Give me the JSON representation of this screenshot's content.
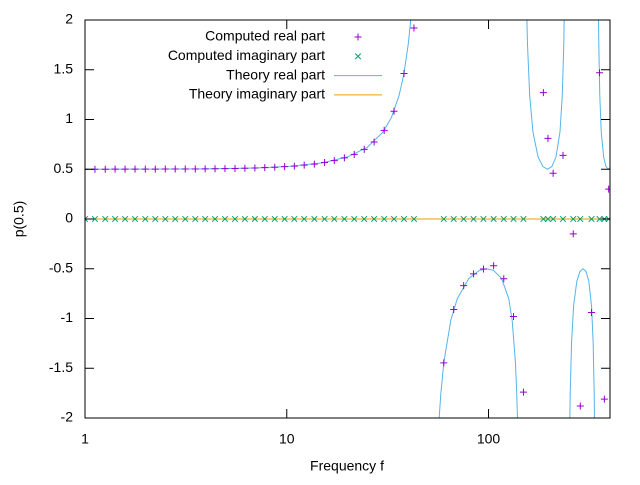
{
  "chart_data": {
    "type": "scatter-line",
    "xlabel": "Frequency f",
    "ylabel": "p(0.5)",
    "xscale": "log",
    "xlim": [
      1,
      400
    ],
    "xticks": [
      1,
      10,
      100
    ],
    "ylim": [
      -2,
      2
    ],
    "yticks": [
      -2,
      -1.5,
      -1,
      -0.5,
      0,
      0.5,
      1,
      1.5,
      2
    ],
    "legend": "top-left",
    "series": [
      {
        "name": "Computed real part",
        "kind": "points",
        "marker": "plus",
        "color": "#9400d3",
        "x": [
          1,
          1.12,
          1.26,
          1.41,
          1.58,
          1.77,
          1.99,
          2.23,
          2.5,
          2.8,
          3.14,
          3.52,
          3.94,
          4.41,
          4.94,
          5.54,
          6.2,
          6.95,
          7.78,
          8.72,
          9.76,
          10.9,
          12.2,
          13.7,
          15.4,
          17.2,
          19.3,
          21.6,
          24.2,
          27.1,
          30.4,
          34,
          38.1,
          42.7,
          60,
          67.2,
          75.3,
          84.3,
          94.4,
          106,
          119,
          133,
          149,
          187,
          197,
          209,
          234,
          263,
          285,
          324,
          355,
          375,
          394
        ],
        "values": [
          0.5,
          0.5,
          0.5,
          0.501,
          0.501,
          0.501,
          0.501,
          0.501,
          0.502,
          0.502,
          0.503,
          0.503,
          0.504,
          0.505,
          0.506,
          0.508,
          0.51,
          0.513,
          0.516,
          0.52,
          0.526,
          0.532,
          0.541,
          0.552,
          0.568,
          0.587,
          0.614,
          0.65,
          0.7,
          0.774,
          0.891,
          1.083,
          1.462,
          1.92,
          -1.446,
          -0.909,
          -0.67,
          -0.552,
          -0.503,
          -0.47,
          -0.6,
          -0.98,
          -1.74,
          1.27,
          0.81,
          0.46,
          0.64,
          -0.15,
          -1.88,
          -0.94,
          1.47,
          -1.81,
          0.3
        ]
      },
      {
        "name": "Computed imaginary part",
        "kind": "points",
        "marker": "cross",
        "color": "#009e73",
        "x": [
          1,
          1.12,
          1.26,
          1.41,
          1.58,
          1.77,
          1.99,
          2.23,
          2.5,
          2.8,
          3.14,
          3.52,
          3.94,
          4.41,
          4.94,
          5.54,
          6.2,
          6.95,
          7.78,
          8.72,
          9.76,
          10.9,
          12.2,
          13.7,
          15.4,
          17.2,
          19.3,
          21.6,
          24.2,
          27.1,
          30.4,
          34,
          38.1,
          42.7,
          60,
          67.2,
          75.3,
          84.3,
          94.4,
          106,
          119,
          133,
          149,
          187,
          197,
          209,
          234,
          263,
          285,
          324,
          355,
          375,
          394
        ],
        "values": [
          0,
          0,
          0,
          0,
          0,
          0,
          0,
          0,
          0,
          0,
          0,
          0,
          0,
          0,
          0,
          0,
          0,
          0,
          0,
          0,
          0,
          0,
          0,
          0,
          0,
          0,
          0,
          0,
          0,
          0,
          0,
          0,
          0,
          0,
          0,
          0,
          0,
          0,
          0,
          0,
          0,
          0,
          0,
          0,
          0,
          0,
          0,
          0,
          0,
          0,
          0,
          0,
          0
        ]
      },
      {
        "name": "Theory real part",
        "kind": "line",
        "color": "#56b4e9",
        "x": [
          1,
          2,
          4,
          7,
          10,
          15,
          20,
          25,
          30,
          33,
          36,
          38,
          40,
          41,
          41.5,
          48,
          56.5,
          58,
          60,
          65,
          70,
          80,
          90,
          98,
          106,
          116,
          126,
          131,
          136,
          138,
          139.5,
          147,
          154.5,
          156,
          160,
          166,
          176,
          186,
          196,
          206,
          216,
          226,
          232,
          236,
          237.5,
          245,
          252.5,
          254,
          258,
          264,
          274,
          284,
          294,
          304,
          314,
          324,
          330,
          334,
          335.5,
          343,
          350.5,
          352,
          356,
          362,
          372,
          382,
          392,
          400
        ],
        "values": [
          0.5,
          0.501,
          0.504,
          0.513,
          0.527,
          0.564,
          0.624,
          0.719,
          0.874,
          1.02,
          1.238,
          1.451,
          1.756,
          1.967,
          2.1,
          null,
          -2.1,
          -1.76,
          -1.446,
          -1.018,
          -0.801,
          -0.596,
          -0.517,
          -0.5,
          -0.517,
          -0.597,
          -0.802,
          -1.021,
          -1.448,
          -1.756,
          -2.09,
          null,
          2.1,
          1.756,
          1.238,
          0.874,
          0.624,
          0.527,
          0.5,
          0.527,
          0.624,
          0.874,
          1.238,
          1.756,
          2.1,
          null,
          -2.1,
          -1.756,
          -1.238,
          -0.874,
          -0.624,
          -0.527,
          -0.5,
          -0.527,
          -0.624,
          -0.874,
          -1.238,
          -1.756,
          -2.1,
          null,
          2.1,
          1.756,
          1.238,
          0.874,
          0.624,
          0.527,
          0.5,
          0.517
        ]
      },
      {
        "name": "Theory imaginary part",
        "kind": "line",
        "color": "#e69f00",
        "x": [
          1,
          400
        ],
        "values": [
          0,
          0
        ]
      }
    ]
  }
}
